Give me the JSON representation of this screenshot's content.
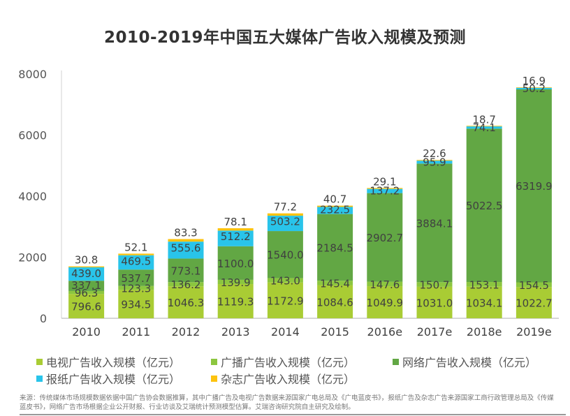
{
  "chart_data": {
    "type": "bar",
    "stacked": true,
    "title": "2010-2019年中国五大媒体广告收入规模及预测",
    "xlabel": "",
    "ylabel": "",
    "ylim": [
      0,
      8000
    ],
    "yticks": [
      "0",
      "2000",
      "4000",
      "6000",
      "8000"
    ],
    "yticks_values": [
      0,
      2000,
      4000,
      6000,
      8000
    ],
    "grid": false,
    "legend_position": "bottom",
    "categories": [
      "2010",
      "2011",
      "2012",
      "2013",
      "2014",
      "2015",
      "2016e",
      "2017e",
      "2018e",
      "2019e"
    ],
    "series": [
      {
        "name": "电视广告收入规模（亿元）",
        "color": "#a9cc34",
        "values": [
          796.6,
          934.5,
          1046.3,
          1119.3,
          1172.9,
          1084.6,
          1049.9,
          1031.0,
          1034.1,
          1022.7
        ]
      },
      {
        "name": "广播广告收入规模（亿元）",
        "color": "#8cc63f",
        "values": [
          96.3,
          123.3,
          136.2,
          139.9,
          143.0,
          145.4,
          147.6,
          150.7,
          153.1,
          154.5
        ]
      },
      {
        "name": "网络广告收入规模（亿元）",
        "color": "#62a744",
        "values": [
          337.1,
          537.7,
          773.1,
          1100.0,
          1540.0,
          2184.5,
          2902.7,
          3884.1,
          5022.5,
          6319.9
        ]
      },
      {
        "name": "报纸广告收入规模（亿元）",
        "color": "#29c4ea",
        "values": [
          439.0,
          469.5,
          555.6,
          512.2,
          503.2,
          232.5,
          137.2,
          95.9,
          74.1,
          50.2
        ]
      },
      {
        "name": "杂志广告收入规模（亿元）",
        "color": "#fdc30f",
        "values": [
          30.8,
          52.1,
          83.3,
          78.1,
          77.2,
          40.7,
          29.1,
          22.6,
          18.7,
          16.9
        ]
      }
    ]
  },
  "legend": [
    {
      "label": "电视广告收入规模（亿元）",
      "color": "#a9cc34"
    },
    {
      "label": "广播广告收入规模（亿元）",
      "color": "#8cc63f"
    },
    {
      "label": "网络广告收入规模（亿元）",
      "color": "#62a744"
    },
    {
      "label": "报纸广告收入规模（亿元）",
      "color": "#29c4ea"
    },
    {
      "label": "杂志广告收入规模（亿元）",
      "color": "#fdc30f"
    }
  ],
  "source": "来源：传统媒体市场规模数据依据中国广告协会数据推算，其中广播广告及电视广告数据来源国家广电总局及《广电蓝皮书》，报纸广告及杂志广告来源国家工商行政管理总局及《传媒蓝皮书》，网络广告市场根据企业公开财报、行业访谈及艾瑞统计预测模型估算。艾瑞咨询研究院自主研究及绘制。"
}
